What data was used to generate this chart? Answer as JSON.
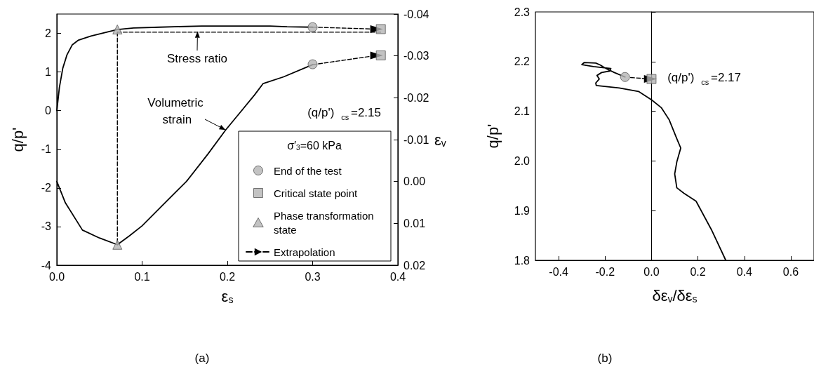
{
  "chart_data": [
    {
      "type": "line",
      "xlabel": "ε$_{s}$",
      "ylabel": "q/p'",
      "y2label": "ε$_{v}$",
      "legend_title": "σ′$_{3}$=60 kPa",
      "legend": "bottom right",
      "annotations": [
        {
          "text": "Stress ratio",
          "x": 0.165,
          "y": 2.05
        },
        {
          "text": "Volumetric strain",
          "x": 0.198,
          "y": -0.5
        },
        "(q/p')$_{cs}$=2.15",
        "(a)"
      ],
      "xlim": [
        0,
        0.4
      ],
      "xticks": [
        {
          "value": 0,
          "label": "0.0"
        },
        0.1,
        0.2,
        0.3,
        0.4
      ],
      "ylim": [
        -4,
        2.5
      ],
      "yticks": [
        -4,
        -3,
        -2,
        -1,
        0,
        1,
        2
      ],
      "y2lim": [
        0.02,
        -0.04
      ],
      "y2ticks": [
        -0.04,
        -0.03,
        -0.02,
        -0.01,
        {
          "value": 0,
          "label": "0.00"
        },
        0.01,
        0.02
      ],
      "series": [
        {
          "color": "#000000",
          "x": [
            0,
            0.003,
            0.007,
            0.012,
            0.018,
            0.025,
            0.04,
            0.06,
            0.071,
            0.09,
            0.12,
            0.17,
            0.22,
            0.25,
            0.27,
            0.3
          ],
          "values": [
            0,
            0.6,
            1.1,
            1.45,
            1.7,
            1.82,
            1.93,
            2.04,
            2.1,
            2.14,
            2.16,
            2.19,
            2.19,
            2.19,
            2.17,
            2.16
          ]
        },
        {
          "color": "#000000",
          "axis": "y2",
          "x": [
            0,
            0.01,
            0.03,
            0.05,
            0.071,
            0.085,
            0.1,
            0.125,
            0.152,
            0.177,
            0.198,
            0.215,
            0.232,
            0.242,
            0.266,
            0.3
          ],
          "values": [
            0,
            0.0051,
            0.0116,
            0.0135,
            0.0151,
            0.013,
            0.0106,
            0.0055,
            0,
            -0.0065,
            -0.0123,
            -0.0165,
            -0.0207,
            -0.0234,
            -0.025,
            -0.0279
          ]
        },
        {
          "color": "#000000",
          "line_style": "dashed",
          "x": [
            0.071,
            0.071
          ],
          "values": [
            2.03,
            -3.47
          ]
        },
        {
          "color": "#000000",
          "line_style": "dashed",
          "x": [
            0.071,
            0.38
          ],
          "values": [
            2.03,
            2.03
          ]
        },
        {
          "name": "End of the test",
          "type": "scatter",
          "marker": "circle",
          "color": "#b4b4b4",
          "x": [
            0.3,
            0.3
          ],
          "values": [
            2.16,
            1.2
          ]
        },
        {
          "name": "Critical state point",
          "type": "scatter",
          "marker": "square",
          "color": "#b4b4b4",
          "x": [
            0.38,
            0.38
          ],
          "values": [
            2.11,
            1.43
          ]
        },
        {
          "name": "Phase transformation state",
          "type": "scatter",
          "marker": "triangle",
          "color": "#b4b4b4",
          "x": [
            0.071,
            0.071
          ],
          "values": [
            2.1,
            -3.47
          ]
        },
        {
          "name": "Extrapolation",
          "color": "#000000",
          "line_style": "dashed",
          "marker": "triangle",
          "x": [
            0.3,
            0.375
          ],
          "values": [
            2.16,
            2.11
          ]
        },
        {
          "color": "#000000",
          "axis": "y2",
          "line_style": "dashed",
          "marker": "triangle",
          "x": [
            0.3,
            0.375
          ],
          "values": [
            -0.0279,
            -0.0301
          ]
        }
      ]
    },
    {
      "type": "line",
      "xlabel": "δε$_{v}$/δε$_{s}$",
      "ylabel": "q/p'",
      "annotations": [
        "(q/p')$_{cs}$=2.17",
        "(b)"
      ],
      "xlim": [
        -0.5,
        0.7
      ],
      "xticks": [
        -0.4,
        -0.2,
        {
          "value": 0,
          "label": "0.0"
        },
        0.2,
        0.4,
        0.6
      ],
      "ylim": [
        1.8,
        2.3
      ],
      "yticks": [
        1.8,
        1.9,
        {
          "value": 2,
          "label": "2.0"
        },
        2.1,
        2.2,
        2.3
      ],
      "series": [
        {
          "color": "#000000",
          "x": [
            0.32,
            0.26,
            0.192,
            0.14,
            0.109,
            0.1,
            0.109,
            0.126,
            0.109,
            0.076,
            0.043,
            0,
            -0.056,
            -0.139,
            -0.238,
            -0.24,
            -0.225,
            -0.235,
            -0.215,
            -0.18,
            -0.175,
            -0.21,
            -0.25,
            -0.3,
            -0.29,
            -0.24,
            -0.22,
            -0.2,
            -0.16,
            -0.114
          ],
          "values": [
            1.8,
            1.86,
            1.919,
            1.935,
            1.946,
            1.974,
            1.998,
            2.026,
            2.045,
            2.083,
            2.107,
            2.123,
            2.14,
            2.147,
            2.152,
            2.157,
            2.165,
            2.172,
            2.178,
            2.181,
            2.186,
            2.188,
            2.19,
            2.194,
            2.198,
            2.197,
            2.193,
            2.187,
            2.178,
            2.169
          ]
        },
        {
          "color": "#000000",
          "line_style": "dashed",
          "marker": "triangle",
          "x": [
            -0.09,
            -0.005
          ],
          "values": [
            2.168,
            2.165
          ]
        },
        {
          "type": "scatter",
          "marker": "circle",
          "color": "#b4b4b4",
          "x": [
            -0.114
          ],
          "values": [
            2.169
          ]
        },
        {
          "type": "scatter",
          "marker": "square",
          "color": "#b4b4b4",
          "x": [
            0
          ],
          "values": [
            2.165
          ]
        }
      ]
    }
  ]
}
